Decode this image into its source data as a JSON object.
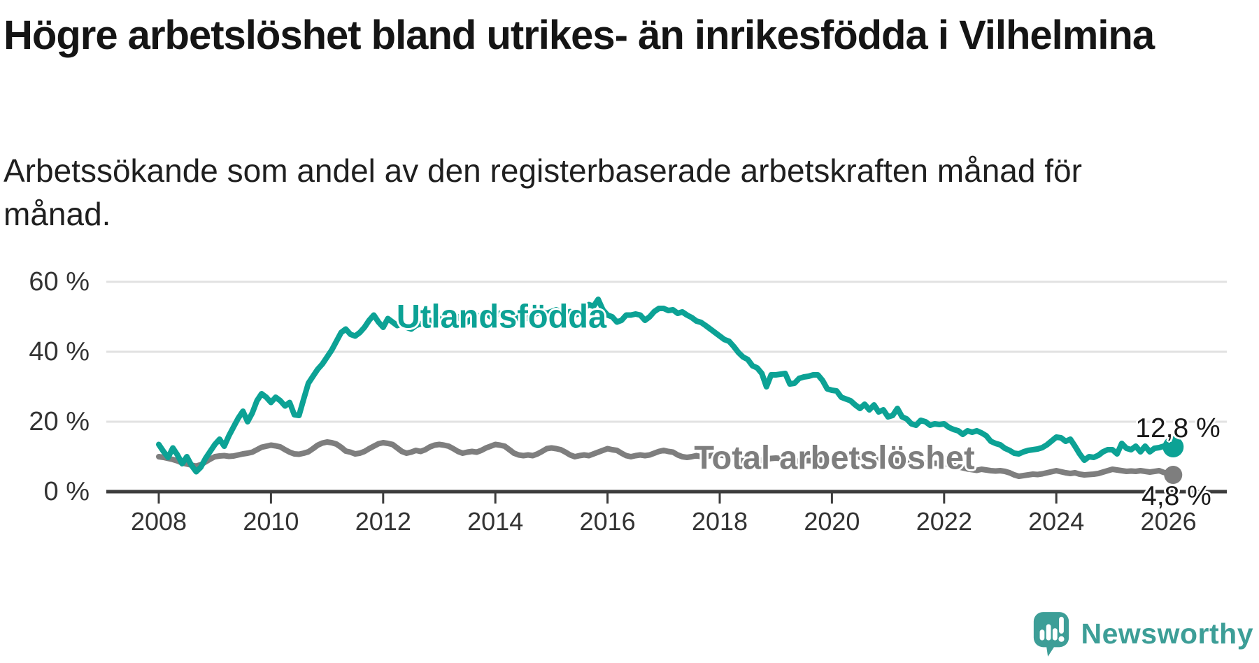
{
  "title": "Högre arbetslöshet bland utrikes- än inrikesfödda i Vilhelmina",
  "subtitle": "Arbetssökande som andel av den registerbaserade arbetskraften månad för månad.",
  "branding": {
    "name": "Newsworthy",
    "icon": "newsworthy-speech-bubble-bar-chart-icon",
    "color": "#3d9e97"
  },
  "colors": {
    "accent_teal": "#0ca295",
    "series_gray": "#7e7e7e",
    "axis": "#3d3d3d",
    "grid": "#e2e2e2",
    "tick_text": "#333333",
    "title_text": "#151515"
  },
  "chart_data": {
    "type": "line",
    "title": "Högre arbetslöshet bland utrikes- än inrikesfödda i Vilhelmina",
    "subtitle": "Arbetssökande som andel av den registerbaserade arbetskraften månad för månad.",
    "x_start": {
      "year": 2008,
      "month": 1
    },
    "x_end": {
      "year": 2026,
      "month": 2
    },
    "x_frequency": "monthly",
    "xticks": [
      2008,
      2010,
      2012,
      2014,
      2016,
      2018,
      2020,
      2022,
      2024,
      2026
    ],
    "xtick_labels": [
      "2008",
      "2010",
      "2012",
      "2014",
      "2016",
      "2018",
      "2020",
      "2022",
      "2024",
      "2026"
    ],
    "yticks": [
      0,
      20,
      40,
      60
    ],
    "ytick_labels": [
      "0 %",
      "20 %",
      "40 %",
      "60 %"
    ],
    "ylim": [
      0,
      64
    ],
    "grid": "horizontal",
    "legend_position": "inline-labels",
    "series": [
      {
        "name": "Utlandsfödda",
        "color": "#0ca295",
        "end_label": "12,8 %",
        "end_value": 12.8,
        "values": [
          13.5,
          11.5,
          9.8,
          12.5,
          10.5,
          8.0,
          10.0,
          7.5,
          5.7,
          7.0,
          9.5,
          11.5,
          13.5,
          15.0,
          13.0,
          16.0,
          18.5,
          21.0,
          23.0,
          20.0,
          22.5,
          26.0,
          28.0,
          27.0,
          25.5,
          27.0,
          26.0,
          24.5,
          25.5,
          22.0,
          21.8,
          26.5,
          31.0,
          33.0,
          35.0,
          36.5,
          38.5,
          40.5,
          43.0,
          45.5,
          46.5,
          45.0,
          44.5,
          45.5,
          47.0,
          49.0,
          50.5,
          48.5,
          47.0,
          49.5,
          48.5,
          47.5,
          48.0,
          47.0,
          46.5,
          47.5,
          48.0,
          48.5,
          49.0,
          48.0,
          49.0,
          50.0,
          49.5,
          49.0,
          50.0,
          49.0,
          48.5,
          49.5,
          50.0,
          50.5,
          51.0,
          50.0,
          50.5,
          51.0,
          50.5,
          50.0,
          50.5,
          49.5,
          49.0,
          50.0,
          50.5,
          51.0,
          51.5,
          51.0,
          51.5,
          52.0,
          51.5,
          51.0,
          51.5,
          50.5,
          51.0,
          52.5,
          53.5,
          53.0,
          55.0,
          52.0,
          50.5,
          50.0,
          48.5,
          49.0,
          50.5,
          50.5,
          50.8,
          50.5,
          49.0,
          50.0,
          51.5,
          52.4,
          52.4,
          51.8,
          52.0,
          51.0,
          51.4,
          50.5,
          49.8,
          48.8,
          48.4,
          47.5,
          46.5,
          45.5,
          44.5,
          43.5,
          43.0,
          41.5,
          39.8,
          38.5,
          37.8,
          36.0,
          35.4,
          33.8,
          30.0,
          33.4,
          33.4,
          33.6,
          33.8,
          30.8,
          31.0,
          32.4,
          32.8,
          33.0,
          33.4,
          33.4,
          31.8,
          29.4,
          29.0,
          28.8,
          27.0,
          26.5,
          26.0,
          24.8,
          23.8,
          25.0,
          23.4,
          24.8,
          22.8,
          23.4,
          21.4,
          21.8,
          23.8,
          21.4,
          20.8,
          19.4,
          19.0,
          20.4,
          20.0,
          19.0,
          19.4,
          19.2,
          19.4,
          18.4,
          17.8,
          17.4,
          16.4,
          17.4,
          17.0,
          17.4,
          16.8,
          16.0,
          14.4,
          13.8,
          13.4,
          12.4,
          11.8,
          11.0,
          10.8,
          11.4,
          11.8,
          12.0,
          12.2,
          12.6,
          13.4,
          14.5,
          15.6,
          15.4,
          14.4,
          15.0,
          13.0,
          10.8,
          9.0,
          10.0,
          9.8,
          10.4,
          11.4,
          12.0,
          12.0,
          10.8,
          13.8,
          12.4,
          12.0,
          13.0,
          11.4,
          13.0,
          11.4,
          12.4,
          12.6,
          13.0,
          13.0,
          12.8
        ]
      },
      {
        "name": "Total arbetslöshet",
        "color": "#7e7e7e",
        "end_label": "4,8 %",
        "end_value": 4.8,
        "values": [
          10.0,
          9.8,
          9.5,
          9.2,
          8.8,
          8.2,
          7.9,
          7.6,
          7.3,
          7.7,
          8.5,
          9.3,
          10.0,
          10.2,
          10.3,
          10.1,
          10.2,
          10.5,
          10.8,
          11.0,
          11.3,
          12.0,
          12.7,
          13.0,
          13.3,
          13.1,
          12.8,
          12.0,
          11.3,
          10.8,
          10.7,
          11.0,
          11.4,
          12.3,
          13.3,
          13.9,
          14.2,
          14.0,
          13.6,
          12.7,
          11.6,
          11.3,
          10.8,
          11.0,
          11.5,
          12.3,
          13.0,
          13.7,
          14.0,
          13.8,
          13.5,
          12.5,
          11.5,
          11.0,
          11.3,
          11.8,
          11.5,
          12.0,
          12.8,
          13.3,
          13.5,
          13.3,
          13.0,
          12.3,
          11.5,
          11.0,
          11.3,
          11.5,
          11.3,
          11.8,
          12.5,
          13.0,
          13.5,
          13.3,
          13.0,
          12.0,
          11.0,
          10.5,
          10.3,
          10.5,
          10.3,
          10.8,
          11.5,
          12.3,
          12.5,
          12.3,
          12.0,
          11.3,
          10.5,
          10.0,
          10.3,
          10.5,
          10.3,
          10.8,
          11.3,
          11.8,
          12.3,
          12.0,
          11.8,
          11.0,
          10.3,
          10.0,
          10.3,
          10.5,
          10.3,
          10.5,
          11.0,
          11.5,
          11.8,
          11.5,
          11.3,
          10.5,
          10.0,
          9.8,
          10.0,
          10.3,
          10.0,
          10.0,
          10.3,
          10.5,
          10.5,
          10.3,
          10.0,
          9.5,
          9.0,
          8.8,
          9.0,
          9.0,
          8.8,
          9.0,
          9.3,
          9.5,
          9.6,
          9.5,
          9.3,
          9.0,
          8.8,
          8.7,
          8.8,
          8.9,
          8.8,
          9.0,
          9.1,
          9.2,
          9.3,
          9.3,
          9.8,
          10.2,
          10.3,
          10.1,
          9.9,
          9.7,
          9.5,
          9.3,
          9.2,
          9.2,
          9.1,
          9.0,
          8.9,
          8.7,
          8.5,
          8.3,
          8.2,
          8.2,
          8.1,
          8.1,
          8.1,
          8.1,
          8.0,
          7.8,
          7.5,
          7.1,
          6.8,
          6.5,
          6.3,
          6.1,
          6.4,
          6.2,
          6.0,
          5.9,
          6.0,
          5.8,
          5.4,
          4.8,
          4.4,
          4.6,
          4.8,
          5.0,
          4.9,
          5.1,
          5.4,
          5.7,
          6.0,
          5.7,
          5.4,
          5.2,
          5.4,
          5.0,
          4.8,
          4.9,
          5.0,
          5.2,
          5.6,
          6.0,
          6.4,
          6.2,
          6.0,
          5.8,
          5.9,
          5.8,
          6.0,
          5.8,
          5.6,
          5.8,
          6.0,
          5.5,
          5.2,
          4.8
        ]
      }
    ]
  }
}
